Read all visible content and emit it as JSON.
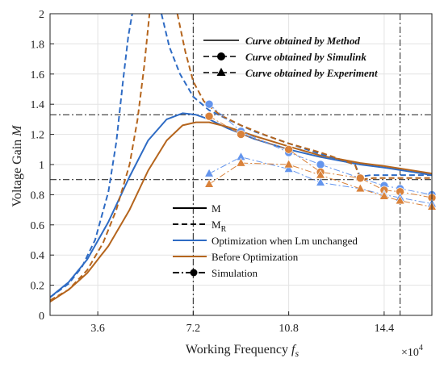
{
  "chart_data": {
    "type": "line",
    "xlabel": "Working Frequency",
    "xlabel_var": "f",
    "xlabel_sub": "s",
    "x_multiplier": "×10",
    "x_multiplier_exp": "4",
    "ylabel": "Voltage Gain",
    "ylabel_var": "M",
    "xlim": [
      1.8,
      16.2
    ],
    "ylim": [
      0,
      2
    ],
    "xticks": [
      3.6,
      7.2,
      10.8,
      14.4
    ],
    "xtick_labels": [
      "3.6",
      "7.2",
      "10.8",
      "14.4"
    ],
    "yticks": [
      0,
      0.2,
      0.4,
      0.6,
      0.8,
      1,
      1.2,
      1.4,
      1.6,
      1.8,
      2
    ],
    "ytick_labels": [
      "0",
      "0.2",
      "0.4",
      "0.6",
      "0.8",
      "1",
      "1.2",
      "1.4",
      "1.6",
      "1.8",
      "2"
    ],
    "grid": true,
    "colors": {
      "blue": "#2e6bc4",
      "brown": "#b5651d",
      "orange": "#d9823b",
      "gray": "#555555"
    },
    "reference_lines": {
      "vertical": [
        7.2,
        15.0
      ],
      "horizontal": [
        1.33,
        0.9
      ]
    },
    "series": [
      {
        "name": "Optimization when Lm unchanged",
        "style": "solid",
        "color": "#2e6bc4",
        "x": [
          1.8,
          2.5,
          3.2,
          4.0,
          4.8,
          5.5,
          6.2,
          6.8,
          7.3,
          7.8,
          8.5,
          9.5,
          10.8,
          12.0,
          13.5,
          14.4,
          15.5,
          16.2
        ],
        "y": [
          0.12,
          0.22,
          0.37,
          0.62,
          0.92,
          1.16,
          1.3,
          1.34,
          1.33,
          1.3,
          1.24,
          1.17,
          1.1,
          1.05,
          1.0,
          0.98,
          0.95,
          0.93
        ]
      },
      {
        "name": "Before Optimization",
        "style": "solid",
        "color": "#b5651d",
        "x": [
          1.8,
          2.5,
          3.2,
          4.0,
          4.8,
          5.5,
          6.2,
          6.8,
          7.3,
          7.8,
          8.5,
          9.5,
          10.8,
          12.0,
          13.5,
          14.4,
          15.5,
          16.2
        ],
        "y": [
          0.09,
          0.17,
          0.28,
          0.46,
          0.7,
          0.96,
          1.16,
          1.26,
          1.28,
          1.28,
          1.25,
          1.19,
          1.12,
          1.06,
          1.01,
          0.99,
          0.96,
          0.94
        ]
      },
      {
        "name": "M_R (optimized)",
        "style": "dashed",
        "color": "#2e6bc4",
        "x": [
          1.8,
          2.5,
          3.0,
          3.5,
          4.0,
          4.3,
          4.55,
          4.75,
          4.9
        ],
        "y": [
          0.12,
          0.21,
          0.32,
          0.5,
          0.82,
          1.15,
          1.55,
          1.85,
          2.0
        ],
        "x2": [
          6.0,
          6.3,
          6.7,
          7.2,
          7.8,
          8.5,
          9.5,
          10.8,
          12.0,
          13.3,
          13.5,
          13.9,
          14.4,
          15.5,
          16.2
        ],
        "y2": [
          2.0,
          1.78,
          1.6,
          1.45,
          1.36,
          1.3,
          1.22,
          1.14,
          1.07,
          1.0,
          0.92,
          0.93,
          0.93,
          0.93,
          0.93
        ]
      },
      {
        "name": "M_R (before)",
        "style": "dashed",
        "color": "#b5651d",
        "x": [
          1.8,
          2.5,
          3.2,
          3.8,
          4.3,
          4.8,
          5.1,
          5.35,
          5.55
        ],
        "y": [
          0.1,
          0.17,
          0.3,
          0.48,
          0.7,
          1.0,
          1.3,
          1.65,
          2.0
        ],
        "x2": [
          6.6,
          6.9,
          7.2,
          7.6,
          8.2,
          9.0,
          10.0,
          10.8,
          12.0,
          13.3,
          13.5,
          14.0,
          14.4,
          15.5,
          16.2
        ],
        "y2": [
          2.0,
          1.75,
          1.55,
          1.42,
          1.33,
          1.26,
          1.19,
          1.14,
          1.08,
          1.0,
          0.9,
          0.91,
          0.91,
          0.91,
          0.91
        ]
      }
    ],
    "simulation_series": [
      {
        "name": "Simulation M (optimized)",
        "color": "#6495ed",
        "marker": "circle",
        "x": [
          7.8,
          9.0,
          10.8,
          12.0,
          13.5,
          14.4,
          15.0,
          16.2
        ],
        "y": [
          1.4,
          1.22,
          1.08,
          1.0,
          0.91,
          0.86,
          0.84,
          0.8
        ]
      },
      {
        "name": "Simulation M (before)",
        "color": "#d9823b",
        "marker": "circle",
        "x": [
          7.8,
          9.0,
          10.8,
          12.0,
          13.5,
          14.4,
          15.0,
          16.2
        ],
        "y": [
          1.32,
          1.2,
          1.1,
          0.95,
          0.91,
          0.83,
          0.82,
          0.78
        ]
      },
      {
        "name": "Simulation M_R (optimized)",
        "color": "#6495ed",
        "marker": "triangle",
        "x": [
          7.8,
          9.0,
          10.8,
          12.0,
          13.5,
          14.4,
          15.0,
          16.2
        ],
        "y": [
          0.94,
          1.05,
          0.97,
          0.88,
          0.84,
          0.8,
          0.78,
          0.74
        ]
      },
      {
        "name": "Simulation M_R (before)",
        "color": "#d9823b",
        "marker": "triangle",
        "x": [
          7.8,
          9.0,
          10.8,
          12.0,
          13.5,
          14.4,
          15.0,
          16.2
        ],
        "y": [
          0.87,
          1.01,
          1.0,
          0.93,
          0.84,
          0.79,
          0.76,
          0.72
        ]
      }
    ],
    "legend_top": [
      {
        "label": "Curve obtained by Method",
        "style": "solid",
        "marker": "none"
      },
      {
        "label": "Curve obtained by Simulink",
        "style": "dashed",
        "marker": "circle"
      },
      {
        "label": "Curve obtained by Experiment",
        "style": "dashed",
        "marker": "triangle"
      }
    ],
    "legend_bottom": [
      {
        "label": "M",
        "label_sub": "",
        "style": "solid",
        "color": "#000000"
      },
      {
        "label": "M",
        "label_sub": "R",
        "style": "dashed",
        "color": "#000000"
      },
      {
        "label": "Optimization when Lm unchanged",
        "label_sub": "",
        "style": "solid",
        "color": "#2e6bc4"
      },
      {
        "label": "Before Optimization",
        "label_sub": "",
        "style": "solid",
        "color": "#b5651d"
      },
      {
        "label": "Simulation",
        "label_sub": "",
        "style": "dashdot",
        "color": "#000000",
        "marker": "circle"
      }
    ]
  }
}
